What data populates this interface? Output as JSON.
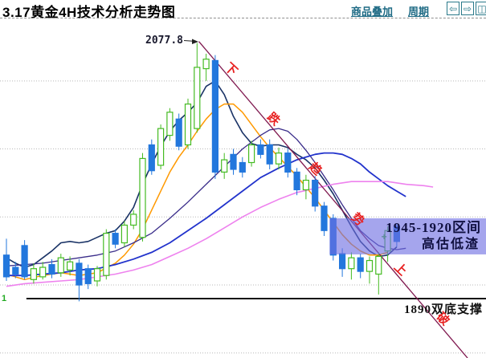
{
  "header": {
    "title": "3.17黄金4H技术分析走势图",
    "links": [
      {
        "label": "商品叠加"
      },
      {
        "label": "周期"
      }
    ],
    "buttons": [
      {
        "name": "scroll-left-button",
        "glyph": "⇦"
      },
      {
        "name": "scroll-right-button",
        "glyph": "⇨"
      },
      {
        "name": "layout-button",
        "glyph": "◫"
      }
    ]
  },
  "colors": {
    "accent_teal": "#1f6b85",
    "candle_up": "#44bb22",
    "candle_down": "#2277dd",
    "ma_fast": "#1a3366",
    "ma_mid": "#ff9900",
    "ma_slow": "#3a2d8a",
    "ma_slower": "#2233cc",
    "ma_slowest": "#ee82ee",
    "trendline": "#801a50",
    "annotation_red": "#e82020",
    "highlight_fill": "#6e6ee2",
    "support_line": "#111111",
    "grid": "#b8b8b8"
  },
  "annotations": {
    "peak_label": "2077.8",
    "support_label": "1890双底支撑",
    "highlight_line1": "1945-1920区间",
    "highlight_line2": "高估低渣",
    "corner_marker": "1",
    "trend_chars": [
      "下",
      "跌",
      "趋",
      "势",
      "上",
      "破"
    ],
    "plus_marker": "+"
  },
  "chart_data": {
    "type": "candlestick",
    "title": "3.17黄金4H技术分析走势图",
    "instrument": "黄金",
    "timeframe": "4H",
    "grid_prices": [
      2050,
      2000,
      1950,
      1900,
      1850
    ],
    "ylim": [
      1846,
      2090
    ],
    "peak_price": 2077.8,
    "support": {
      "price": 1890,
      "from_index": 2.2,
      "label": "1890双底支撑"
    },
    "highlight_box": {
      "from_index": 35.6,
      "price_top": 1949,
      "price_bottom": 1922.5,
      "label_line1": "1945-1920区间",
      "label_line2": "高估低渣"
    },
    "trendline": {
      "from": {
        "index": 21.2,
        "price": 2079
      },
      "to": {
        "index": 50.8,
        "price": 1846.3
      },
      "label_chars": [
        "下",
        "跌",
        "趋",
        "势",
        "上",
        "破"
      ]
    },
    "plus_marker": {
      "index": 41.6,
      "price": 1935.5
    },
    "candles_format": [
      "open",
      "high",
      "low",
      "close"
    ],
    "candles": [
      [
        1922,
        1934,
        1903,
        1906
      ],
      [
        1913,
        1917,
        1905,
        1908
      ],
      [
        1929,
        1933,
        1904,
        1906
      ],
      [
        1904,
        1916,
        1901,
        1912
      ],
      [
        1906,
        1917,
        1904,
        1913
      ],
      [
        1915,
        1919,
        1905,
        1908
      ],
      [
        1909,
        1923,
        1906,
        1920
      ],
      [
        1911,
        1921,
        1907,
        1917
      ],
      [
        1916,
        1919,
        1888,
        1900
      ],
      [
        1912,
        1915,
        1897,
        1901
      ],
      [
        1903,
        1914,
        1899,
        1912
      ],
      [
        1907,
        1941,
        1904,
        1938
      ],
      [
        1938,
        1941,
        1927,
        1930
      ],
      [
        1931,
        1947,
        1928,
        1944
      ],
      [
        1944,
        1955,
        1941,
        1952
      ],
      [
        1935,
        1997,
        1932,
        1993
      ],
      [
        2003,
        2007,
        1981,
        1984
      ],
      [
        1988,
        2018,
        1985,
        2015
      ],
      [
        2010,
        2030,
        2006,
        2027
      ],
      [
        2022,
        2026,
        1999,
        2002
      ],
      [
        2003,
        2037,
        2000,
        2033
      ],
      [
        2015,
        2077.8,
        2012,
        2060
      ],
      [
        2059,
        2070,
        2050,
        2066
      ],
      [
        2065,
        2069,
        1978,
        1983
      ],
      [
        1983,
        1997,
        1978,
        1992
      ],
      [
        1996,
        2000,
        1981,
        1985
      ],
      [
        1990,
        1994,
        1979,
        1983
      ],
      [
        1990,
        2006,
        1987,
        2003
      ],
      [
        2003,
        2007,
        1993,
        1996
      ],
      [
        2003,
        2007,
        1985,
        1989
      ],
      [
        1989,
        2001,
        1985,
        1997
      ],
      [
        1997,
        2000,
        1979,
        1983
      ],
      [
        1983,
        1986,
        1966,
        1970
      ],
      [
        1970,
        1981,
        1963,
        1977
      ],
      [
        1977,
        1980,
        1954,
        1958
      ],
      [
        1958,
        1961,
        1936,
        1940
      ],
      [
        1949,
        1952,
        1918,
        1922
      ],
      [
        1923,
        1927,
        1906,
        1912
      ],
      [
        1912,
        1924,
        1904,
        1920
      ],
      [
        1920,
        1923,
        1905,
        1910
      ],
      [
        1910,
        1921,
        1901,
        1918
      ],
      [
        1908,
        1924,
        1893,
        1921
      ],
      [
        1925,
        1943,
        1917,
        1940
      ],
      [
        1943,
        1945,
        1928,
        1932
      ]
    ],
    "ma_series": [
      {
        "name": "MA-fast",
        "color_key": "ma_fast",
        "width": 1.6,
        "points": [
          [
            0,
            1920
          ],
          [
            1,
            1916
          ],
          [
            2,
            1913
          ],
          [
            3,
            1915
          ],
          [
            4,
            1920
          ],
          [
            5,
            1925
          ],
          [
            6,
            1931
          ],
          [
            7,
            1932
          ],
          [
            8,
            1931
          ],
          [
            9,
            1932
          ],
          [
            10,
            1935
          ],
          [
            11,
            1938
          ],
          [
            12,
            1940
          ],
          [
            13,
            1947
          ],
          [
            14,
            1957
          ],
          [
            15,
            1974
          ],
          [
            16,
            1989
          ],
          [
            17,
            2002
          ],
          [
            18,
            2013
          ],
          [
            19,
            2021
          ],
          [
            20,
            2027
          ],
          [
            21,
            2034
          ],
          [
            22,
            2046
          ],
          [
            23,
            2050
          ],
          [
            24,
            2040
          ],
          [
            25,
            2024
          ],
          [
            26,
            2012
          ],
          [
            27,
            2004
          ],
          [
            28,
            2002
          ],
          [
            29,
            2003
          ],
          [
            30,
            2003
          ],
          [
            31,
            2001
          ],
          [
            32,
            1996
          ],
          [
            33,
            1992
          ],
          [
            34,
            1986
          ],
          [
            35,
            1977
          ],
          [
            36,
            1967
          ],
          [
            37,
            1955
          ],
          [
            38,
            1943
          ],
          [
            39,
            1932
          ],
          [
            40,
            1925
          ],
          [
            41,
            1921
          ],
          [
            42,
            1922
          ],
          [
            43,
            1928
          ]
        ]
      },
      {
        "name": "MA-mid",
        "color_key": "ma_mid",
        "width": 1.5,
        "points": [
          [
            0,
            1908
          ],
          [
            2,
            1904
          ],
          [
            4,
            1907
          ],
          [
            6,
            1909
          ],
          [
            8,
            1907
          ],
          [
            10,
            1909
          ],
          [
            12,
            1916
          ],
          [
            13,
            1922
          ],
          [
            14,
            1930
          ],
          [
            15,
            1941
          ],
          [
            16,
            1955
          ],
          [
            17,
            1969
          ],
          [
            18,
            1983
          ],
          [
            19,
            1994
          ],
          [
            20,
            2003
          ],
          [
            21,
            2013
          ],
          [
            22,
            2022
          ],
          [
            23,
            2029
          ],
          [
            24,
            2033
          ],
          [
            25,
            2033
          ],
          [
            26,
            2027
          ],
          [
            27,
            2018
          ],
          [
            28,
            2009
          ],
          [
            29,
            2001
          ],
          [
            30,
            1994
          ],
          [
            31,
            1987
          ],
          [
            32,
            1980
          ],
          [
            33,
            1972
          ],
          [
            34,
            1964
          ],
          [
            35,
            1955
          ],
          [
            36,
            1946
          ],
          [
            37,
            1937
          ],
          [
            38,
            1930
          ],
          [
            39,
            1925
          ],
          [
            40,
            1922
          ],
          [
            41,
            1922
          ],
          [
            42,
            1924
          ]
        ]
      },
      {
        "name": "MA-slow",
        "color_key": "ma_slow",
        "width": 1.3,
        "points": [
          [
            0,
            1914
          ],
          [
            2,
            1915
          ],
          [
            4,
            1916
          ],
          [
            6,
            1918
          ],
          [
            8,
            1920
          ],
          [
            10,
            1922
          ],
          [
            12,
            1925
          ],
          [
            14,
            1931
          ],
          [
            16,
            1938
          ],
          [
            18,
            1949
          ],
          [
            20,
            1961
          ],
          [
            22,
            1974
          ],
          [
            24,
            1987
          ],
          [
            26,
            2000
          ],
          [
            27,
            2005
          ],
          [
            28,
            2010
          ],
          [
            29,
            2014
          ],
          [
            30,
            2015
          ],
          [
            31,
            2013
          ],
          [
            32,
            2007
          ],
          [
            33,
            1999
          ],
          [
            34,
            1990
          ],
          [
            35,
            1980
          ],
          [
            36,
            1970
          ],
          [
            37,
            1959
          ],
          [
            38,
            1949
          ],
          [
            39,
            1940
          ],
          [
            40,
            1934
          ],
          [
            41,
            1929
          ],
          [
            42,
            1927
          ],
          [
            43,
            1926
          ],
          [
            44,
            1927
          ]
        ]
      },
      {
        "name": "MA-slower",
        "color_key": "ma_slower",
        "width": 1.8,
        "points": [
          [
            0,
            1907
          ],
          [
            2,
            1907
          ],
          [
            4,
            1908
          ],
          [
            6,
            1909
          ],
          [
            8,
            1911
          ],
          [
            10,
            1912
          ],
          [
            12,
            1915
          ],
          [
            14,
            1919
          ],
          [
            16,
            1924
          ],
          [
            18,
            1931
          ],
          [
            20,
            1940
          ],
          [
            22,
            1949
          ],
          [
            24,
            1959
          ],
          [
            26,
            1969
          ],
          [
            28,
            1979
          ],
          [
            30,
            1986
          ],
          [
            32,
            1992
          ],
          [
            34,
            1996
          ],
          [
            35,
            1997
          ],
          [
            36,
            1997
          ],
          [
            37,
            1996
          ],
          [
            38,
            1993
          ],
          [
            39,
            1989
          ],
          [
            40,
            1983
          ],
          [
            41,
            1978
          ],
          [
            42,
            1973
          ],
          [
            43,
            1969
          ],
          [
            44,
            1965
          ]
        ]
      },
      {
        "name": "MA-slowest",
        "color_key": "ma_slowest",
        "width": 1.6,
        "points": [
          [
            0,
            1899
          ],
          [
            2,
            1901
          ],
          [
            4,
            1902
          ],
          [
            6,
            1903
          ],
          [
            8,
            1904
          ],
          [
            10,
            1906
          ],
          [
            12,
            1908
          ],
          [
            14,
            1911
          ],
          [
            16,
            1915
          ],
          [
            18,
            1921
          ],
          [
            20,
            1927
          ],
          [
            22,
            1934
          ],
          [
            24,
            1942
          ],
          [
            26,
            1950
          ],
          [
            28,
            1957
          ],
          [
            30,
            1963
          ],
          [
            32,
            1968
          ],
          [
            34,
            1971
          ],
          [
            36,
            1974
          ],
          [
            38,
            1976
          ],
          [
            40,
            1976
          ],
          [
            42,
            1976
          ],
          [
            44,
            1974
          ],
          [
            46,
            1973
          ],
          [
            47,
            1972
          ]
        ]
      }
    ]
  }
}
